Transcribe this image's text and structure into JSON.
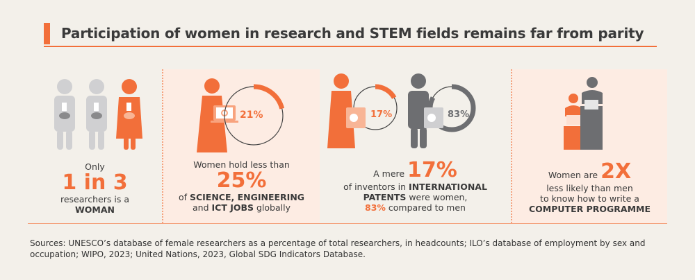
{
  "title": "Participation of women in research and STEM fields remains far from parity",
  "panels": [
    {
      "pre": "Only",
      "big": "1 in 3",
      "line1": "researchers is a",
      "bold": "WOMAN"
    },
    {
      "ring_label": "21%",
      "ring_value": 21,
      "pre": "Women hold less than",
      "big": "25%",
      "of": "of ",
      "bold1": "SCIENCE, ENGINEERING",
      "and": "and ",
      "bold2": "ICT JOBS",
      "post": " globally"
    },
    {
      "ring_women_label": "17%",
      "ring_women_value": 17,
      "ring_men_label": "83%",
      "ring_men_value": 83,
      "pre": "A mere ",
      "big": "17%",
      "l1": "of inventors in ",
      "b1": "INTERNATIONAL",
      "b2": "PATENTS",
      "l2": " were women,",
      "hl": "83%",
      "l3": " compared to men"
    },
    {
      "pre": "Women are ",
      "big": "2X",
      "l1": "less likely than men",
      "l2": "to know how to write a",
      "bold": "COMPUTER PROGRAMME"
    }
  ],
  "sources": "Sources: UNESCO’s database of female researchers as a percentage of total researchers, in headcounts; ILO’s database of employment by sex and occupation; WIPO, 2023; United Nations, 2023, Global SDG Indicators Database.",
  "colors": {
    "accent": "#f26f3a",
    "grey": "#d0d0d2",
    "dark": "#6d6e71",
    "pink": "#fdece3"
  }
}
